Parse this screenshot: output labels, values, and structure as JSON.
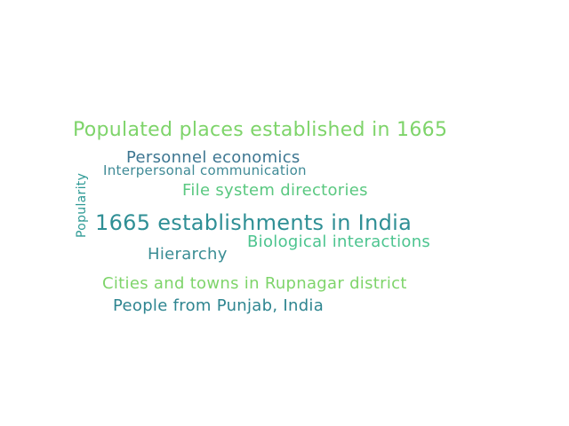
{
  "axis_label": "Popularity",
  "colors": {
    "background": "#ffffff",
    "light_green": "#7ed46a",
    "mint": "#4cc48f",
    "teal": "#2e9a95",
    "slate_blue": "#3f7b96"
  },
  "words": [
    {
      "text": "Populated places established in 1665",
      "color": "#7ed46a"
    },
    {
      "text": "Personnel economics",
      "color": "#3d7691"
    },
    {
      "text": "Interpersonal communication",
      "color": "#3f8a96"
    },
    {
      "text": "File system directories",
      "color": "#5ac880"
    },
    {
      "text": "1665 establishments in India",
      "color": "#2f8f95"
    },
    {
      "text": "Biological interactions",
      "color": "#4cc48f"
    },
    {
      "text": "Hierarchy",
      "color": "#3a8d94"
    },
    {
      "text": "Cities and towns in Rupnagar district",
      "color": "#7ed46a"
    },
    {
      "text": "People from Punjab, India",
      "color": "#2e8590"
    }
  ]
}
